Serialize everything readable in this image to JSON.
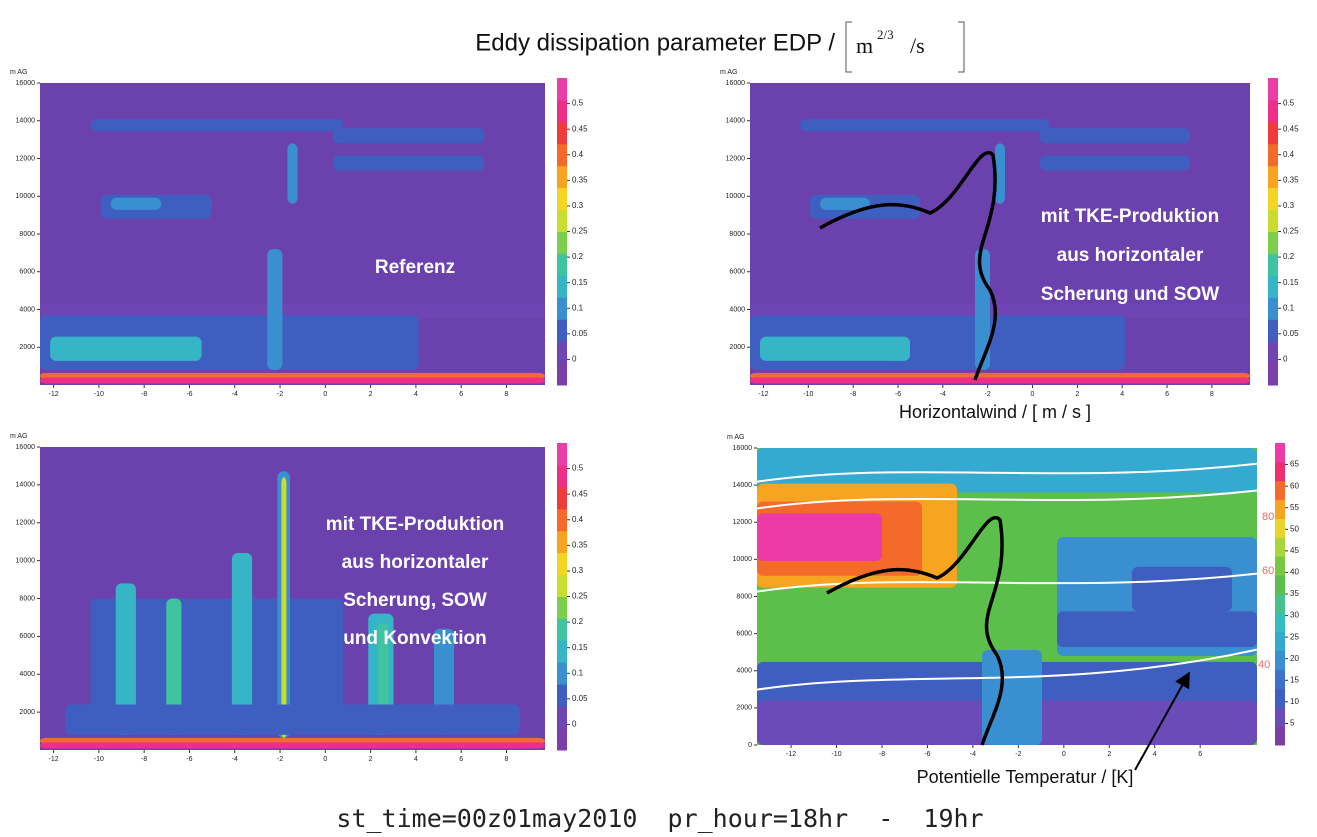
{
  "title": "Eddy dissipation parameter EDP /",
  "title_unit": {
    "base": "m",
    "exponent": "2/3",
    "per": "/s"
  },
  "footer": "st_time=00z01may2010  pr_hour=18hr  -  19hr",
  "chart_data": [
    {
      "type": "heatmap",
      "y_label": "m AG",
      "annotation": [
        "Referenz"
      ],
      "xlim": [
        -12.6,
        9.7
      ],
      "xticks": [
        -12,
        -10,
        -8,
        -6,
        -4,
        -2,
        0,
        2,
        4,
        6,
        8
      ],
      "ylim": [
        0,
        16000
      ],
      "yticks": [
        2000,
        4000,
        6000,
        8000,
        10000,
        12000,
        14000,
        16000
      ],
      "colorbar_lim": [
        -0.05,
        0.55
      ],
      "colorbar_ticks": [
        0,
        0.05,
        0.1,
        0.15,
        0.2,
        0.25,
        0.3,
        0.35,
        0.4,
        0.45,
        0.5
      ]
    },
    {
      "type": "heatmap",
      "y_label": "m AG",
      "annotation": [
        "mit TKE-Produktion",
        "aus horizontaler",
        "Scherung und SOW"
      ],
      "x_label": "Horizontalwind / [ m / s ]",
      "xlim": [
        -12.6,
        9.7
      ],
      "xticks": [
        -12,
        -10,
        -8,
        -6,
        -4,
        -2,
        0,
        2,
        4,
        6,
        8
      ],
      "ylim": [
        0,
        16000
      ],
      "yticks": [
        2000,
        4000,
        6000,
        8000,
        10000,
        12000,
        14000,
        16000
      ],
      "colorbar_lim": [
        -0.05,
        0.55
      ],
      "colorbar_ticks": [
        0,
        0.05,
        0.1,
        0.15,
        0.2,
        0.25,
        0.3,
        0.35,
        0.4,
        0.45,
        0.5
      ]
    },
    {
      "type": "heatmap",
      "y_label": "m AG",
      "annotation": [
        "mit TKE-Produktion",
        "aus horizontaler",
        "Scherung, SOW",
        "und Konvektion"
      ],
      "xlim": [
        -12.6,
        9.7
      ],
      "xticks": [
        -12,
        -10,
        -8,
        -6,
        -4,
        -2,
        0,
        2,
        4,
        6,
        8
      ],
      "ylim": [
        0,
        16000
      ],
      "yticks": [
        2000,
        4000,
        6000,
        8000,
        10000,
        12000,
        14000,
        16000
      ],
      "colorbar_lim": [
        -0.05,
        0.55
      ],
      "colorbar_ticks": [
        0,
        0.05,
        0.1,
        0.15,
        0.2,
        0.25,
        0.3,
        0.35,
        0.4,
        0.45,
        0.5
      ]
    },
    {
      "type": "heatmap",
      "y_label": "m AG",
      "x_label": "Potentielle Temperatur / [K]",
      "xlim": [
        -13.5,
        8.5
      ],
      "xticks": [
        -12,
        -10,
        -8,
        -6,
        -4,
        -2,
        0,
        2,
        4,
        6
      ],
      "ylim": [
        0,
        16000
      ],
      "yticks": [
        0,
        2000,
        4000,
        6000,
        8000,
        10000,
        12000,
        14000,
        16000
      ],
      "colorbar_lim": [
        0,
        70
      ],
      "colorbar_ticks": [
        5,
        10,
        15,
        20,
        25,
        30,
        35,
        40,
        45,
        50,
        55,
        60,
        65
      ],
      "contour_labels": [
        80,
        60,
        40
      ]
    }
  ]
}
